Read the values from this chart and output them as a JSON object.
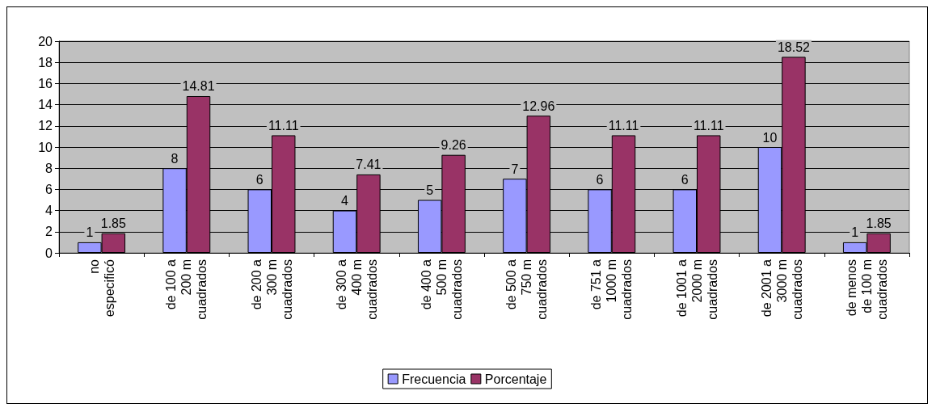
{
  "chart_data": {
    "type": "bar",
    "categories": [
      "no especificó",
      "de 100 a 200 m cuadrados",
      "de 200 a 300 m cuadrados",
      "de 300 a 400 m cuadrados",
      "de 400 a 500 m cuadrados",
      "de 500 a 750 m cuadrados",
      "de 751 a 1000 m cuadrados",
      "de 1001 a 2000 m cuadrados",
      "de 2001 a 3000 m cuadrados",
      "de menos de 100 m cuadrados"
    ],
    "series": [
      {
        "name": "Frecuencia",
        "color": "#9999ff",
        "values": [
          1,
          8,
          6,
          4,
          5,
          7,
          6,
          6,
          10,
          1
        ]
      },
      {
        "name": "Porcentaje",
        "color": "#993366",
        "values": [
          1.85,
          14.81,
          11.11,
          7.41,
          9.26,
          12.96,
          11.11,
          11.11,
          18.52,
          1.85
        ]
      }
    ],
    "ylim": [
      0,
      20
    ],
    "yticks": [
      0,
      2,
      4,
      6,
      8,
      10,
      12,
      14,
      16,
      18,
      20
    ],
    "grid": "y",
    "legend": "bottom",
    "data_labels": true
  }
}
